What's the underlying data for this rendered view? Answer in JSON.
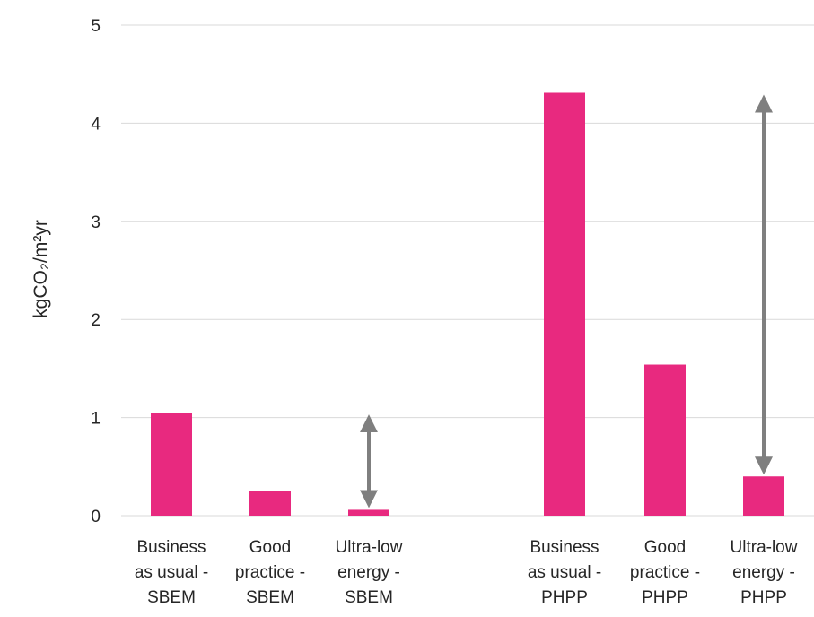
{
  "chart_data": {
    "type": "bar",
    "title": "",
    "xlabel": "",
    "ylabel": "kgCO₂/m²yr",
    "ylim": [
      0,
      5
    ],
    "yticks": [
      "0",
      "1",
      "2",
      "3",
      "4",
      "5"
    ],
    "grid": true,
    "legend": "none",
    "categories": [
      [
        "Business",
        "as usual -",
        "SBEM"
      ],
      [
        "Good",
        "practice -",
        "SBEM"
      ],
      [
        "Ultra-low",
        "energy -",
        "SBEM"
      ],
      [
        "Business",
        "as usual -",
        "PHPP"
      ],
      [
        "Good",
        "practice -",
        "PHPP"
      ],
      [
        "Ultra-low",
        "energy -",
        "PHPP"
      ]
    ],
    "values": [
      1.05,
      0.25,
      0.06,
      4.31,
      1.54,
      0.4
    ],
    "annotations": [
      {
        "type": "double-arrow",
        "category_index": 2,
        "from": 0.06,
        "to": 1.05
      },
      {
        "type": "double-arrow",
        "category_index": 5,
        "from": 0.4,
        "to": 4.31
      }
    ],
    "colors": {
      "bar": "#E8297F",
      "arrow": "#7F7F7F",
      "grid": "#D9D9D9",
      "text": "#262626"
    }
  }
}
